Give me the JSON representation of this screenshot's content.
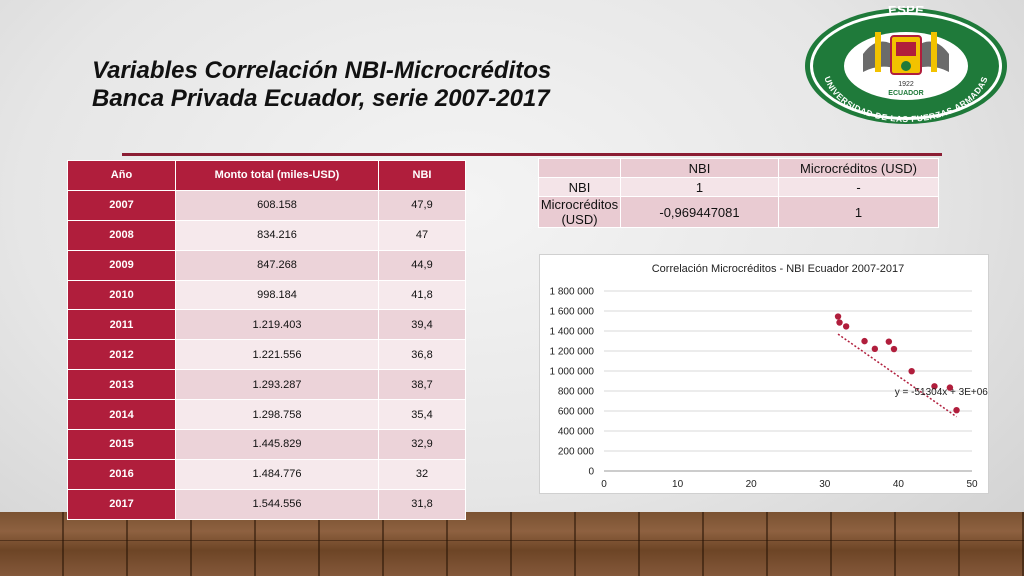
{
  "title_line1": "Variables Correlación NBI-Microcréditos",
  "title_line2": "Banca Privada Ecuador, serie 2007-2017",
  "logo": {
    "top_text": "ESPE",
    "ring_text": "UNIVERSIDAD DE LAS FUERZAS ARMADAS",
    "bottom_text": "ECUADOR",
    "year_text": "1922"
  },
  "data_table": {
    "headers": [
      "Año",
      "Monto total (miles-USD)",
      "NBI"
    ],
    "rows": [
      [
        "2007",
        "608.158",
        "47,9"
      ],
      [
        "2008",
        "834.216",
        "47"
      ],
      [
        "2009",
        "847.268",
        "44,9"
      ],
      [
        "2010",
        "998.184",
        "41,8"
      ],
      [
        "2011",
        "1.219.403",
        "39,4"
      ],
      [
        "2012",
        "1.221.556",
        "36,8"
      ],
      [
        "2013",
        "1.293.287",
        "38,7"
      ],
      [
        "2014",
        "1.298.758",
        "35,4"
      ],
      [
        "2015",
        "1.445.829",
        "32,9"
      ],
      [
        "2016",
        "1.484.776",
        "32"
      ],
      [
        "2017",
        "1.544.556",
        "31,8"
      ]
    ]
  },
  "corr_table": {
    "header": [
      "",
      "NBI",
      "Microcréditos (USD)"
    ],
    "rows": [
      [
        "NBI",
        "1",
        "-"
      ],
      [
        "Microcréditos (USD)",
        "-0,969447081",
        "1"
      ]
    ]
  },
  "chart_data": {
    "type": "scatter",
    "title": "Correlación Microcréditos - NBI Ecuador 2007-2017",
    "xlabel": "",
    "ylabel": "",
    "xlim": [
      0,
      50
    ],
    "ylim": [
      0,
      1800000
    ],
    "x_ticks": [
      "0",
      "10",
      "20",
      "30",
      "40",
      "50"
    ],
    "y_ticks": [
      "0",
      "200 000",
      "400 000",
      "600 000",
      "800 000",
      "1 000 000",
      "1 200 000",
      "1 400 000",
      "1 600 000",
      "1 800 000"
    ],
    "grid": "horizontal",
    "series": [
      {
        "points": [
          [
            47.9,
            608158
          ],
          [
            47,
            834216
          ],
          [
            44.9,
            847268
          ],
          [
            41.8,
            998184
          ],
          [
            39.4,
            1219403
          ],
          [
            36.8,
            1221556
          ],
          [
            38.7,
            1293287
          ],
          [
            35.4,
            1298758
          ],
          [
            32.9,
            1445829
          ],
          [
            32,
            1484776
          ],
          [
            31.8,
            1544556
          ]
        ],
        "color": "#b01e3c"
      }
    ],
    "trendline": {
      "slope": -51304,
      "intercept": 3000000,
      "x_range": [
        31.8,
        47.9
      ],
      "label": "y = -51304x + 3E+06",
      "color": "#b01e3c"
    }
  }
}
